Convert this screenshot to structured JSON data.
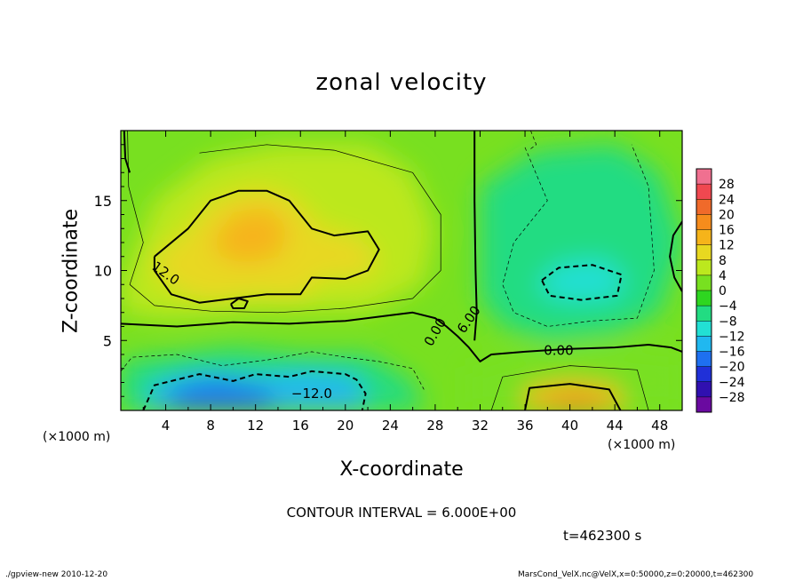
{
  "chart_data": {
    "type": "heatmap",
    "title": "zonal velocity",
    "xlabel": "X-coordinate",
    "ylabel": "Z-coordinate",
    "x_unit_label": "(×1000 m)",
    "xlim": [
      0,
      50
    ],
    "ylim": [
      0,
      20
    ],
    "x_ticks": [
      4,
      8,
      12,
      16,
      20,
      24,
      28,
      32,
      36,
      40,
      44,
      48
    ],
    "y_ticks": [
      5,
      10,
      15
    ],
    "colorbar": {
      "labels": [
        "28",
        "24",
        "20",
        "16",
        "12",
        "8",
        "4",
        "0",
        "−4",
        "−8",
        "−12",
        "−16",
        "−20",
        "−24",
        "−28"
      ],
      "colors": [
        "#f07090",
        "#f04850",
        "#f06a2a",
        "#f68c1c",
        "#f6b41a",
        "#e8d820",
        "#bce81e",
        "#78e020",
        "#2ed620",
        "#22dc82",
        "#22e0d4",
        "#20b8f0",
        "#1e70f0",
        "#2030d8",
        "#3010b0",
        "#6a0aa0"
      ]
    },
    "contour_labels": [
      "12.0",
      "0.00",
      "6.00",
      "0.00",
      "−12.0"
    ],
    "contour_interval_text": "CONTOUR INTERVAL = 6.000E+00",
    "time_text": "t=462300 s",
    "regions": [
      {
        "name": "upper-left jet",
        "x": 10.5,
        "z": 12,
        "value": 14
      },
      {
        "name": "upper-left secondary max",
        "x": 7,
        "z": 10.5,
        "value": 12
      },
      {
        "name": "lower-left return flow",
        "x": 10,
        "z": 1.5,
        "value": -16
      },
      {
        "name": "right-middle westward",
        "x": 41,
        "z": 9.5,
        "value": -10
      },
      {
        "name": "bottom-right jet",
        "x": 40,
        "z": 0.8,
        "value": 16
      }
    ]
  },
  "footer": {
    "left": "./gpview-new  2010-12-20",
    "right": "MarsCond_VelX.nc@VelX,x=0:50000,z=0:20000,t=462300"
  }
}
